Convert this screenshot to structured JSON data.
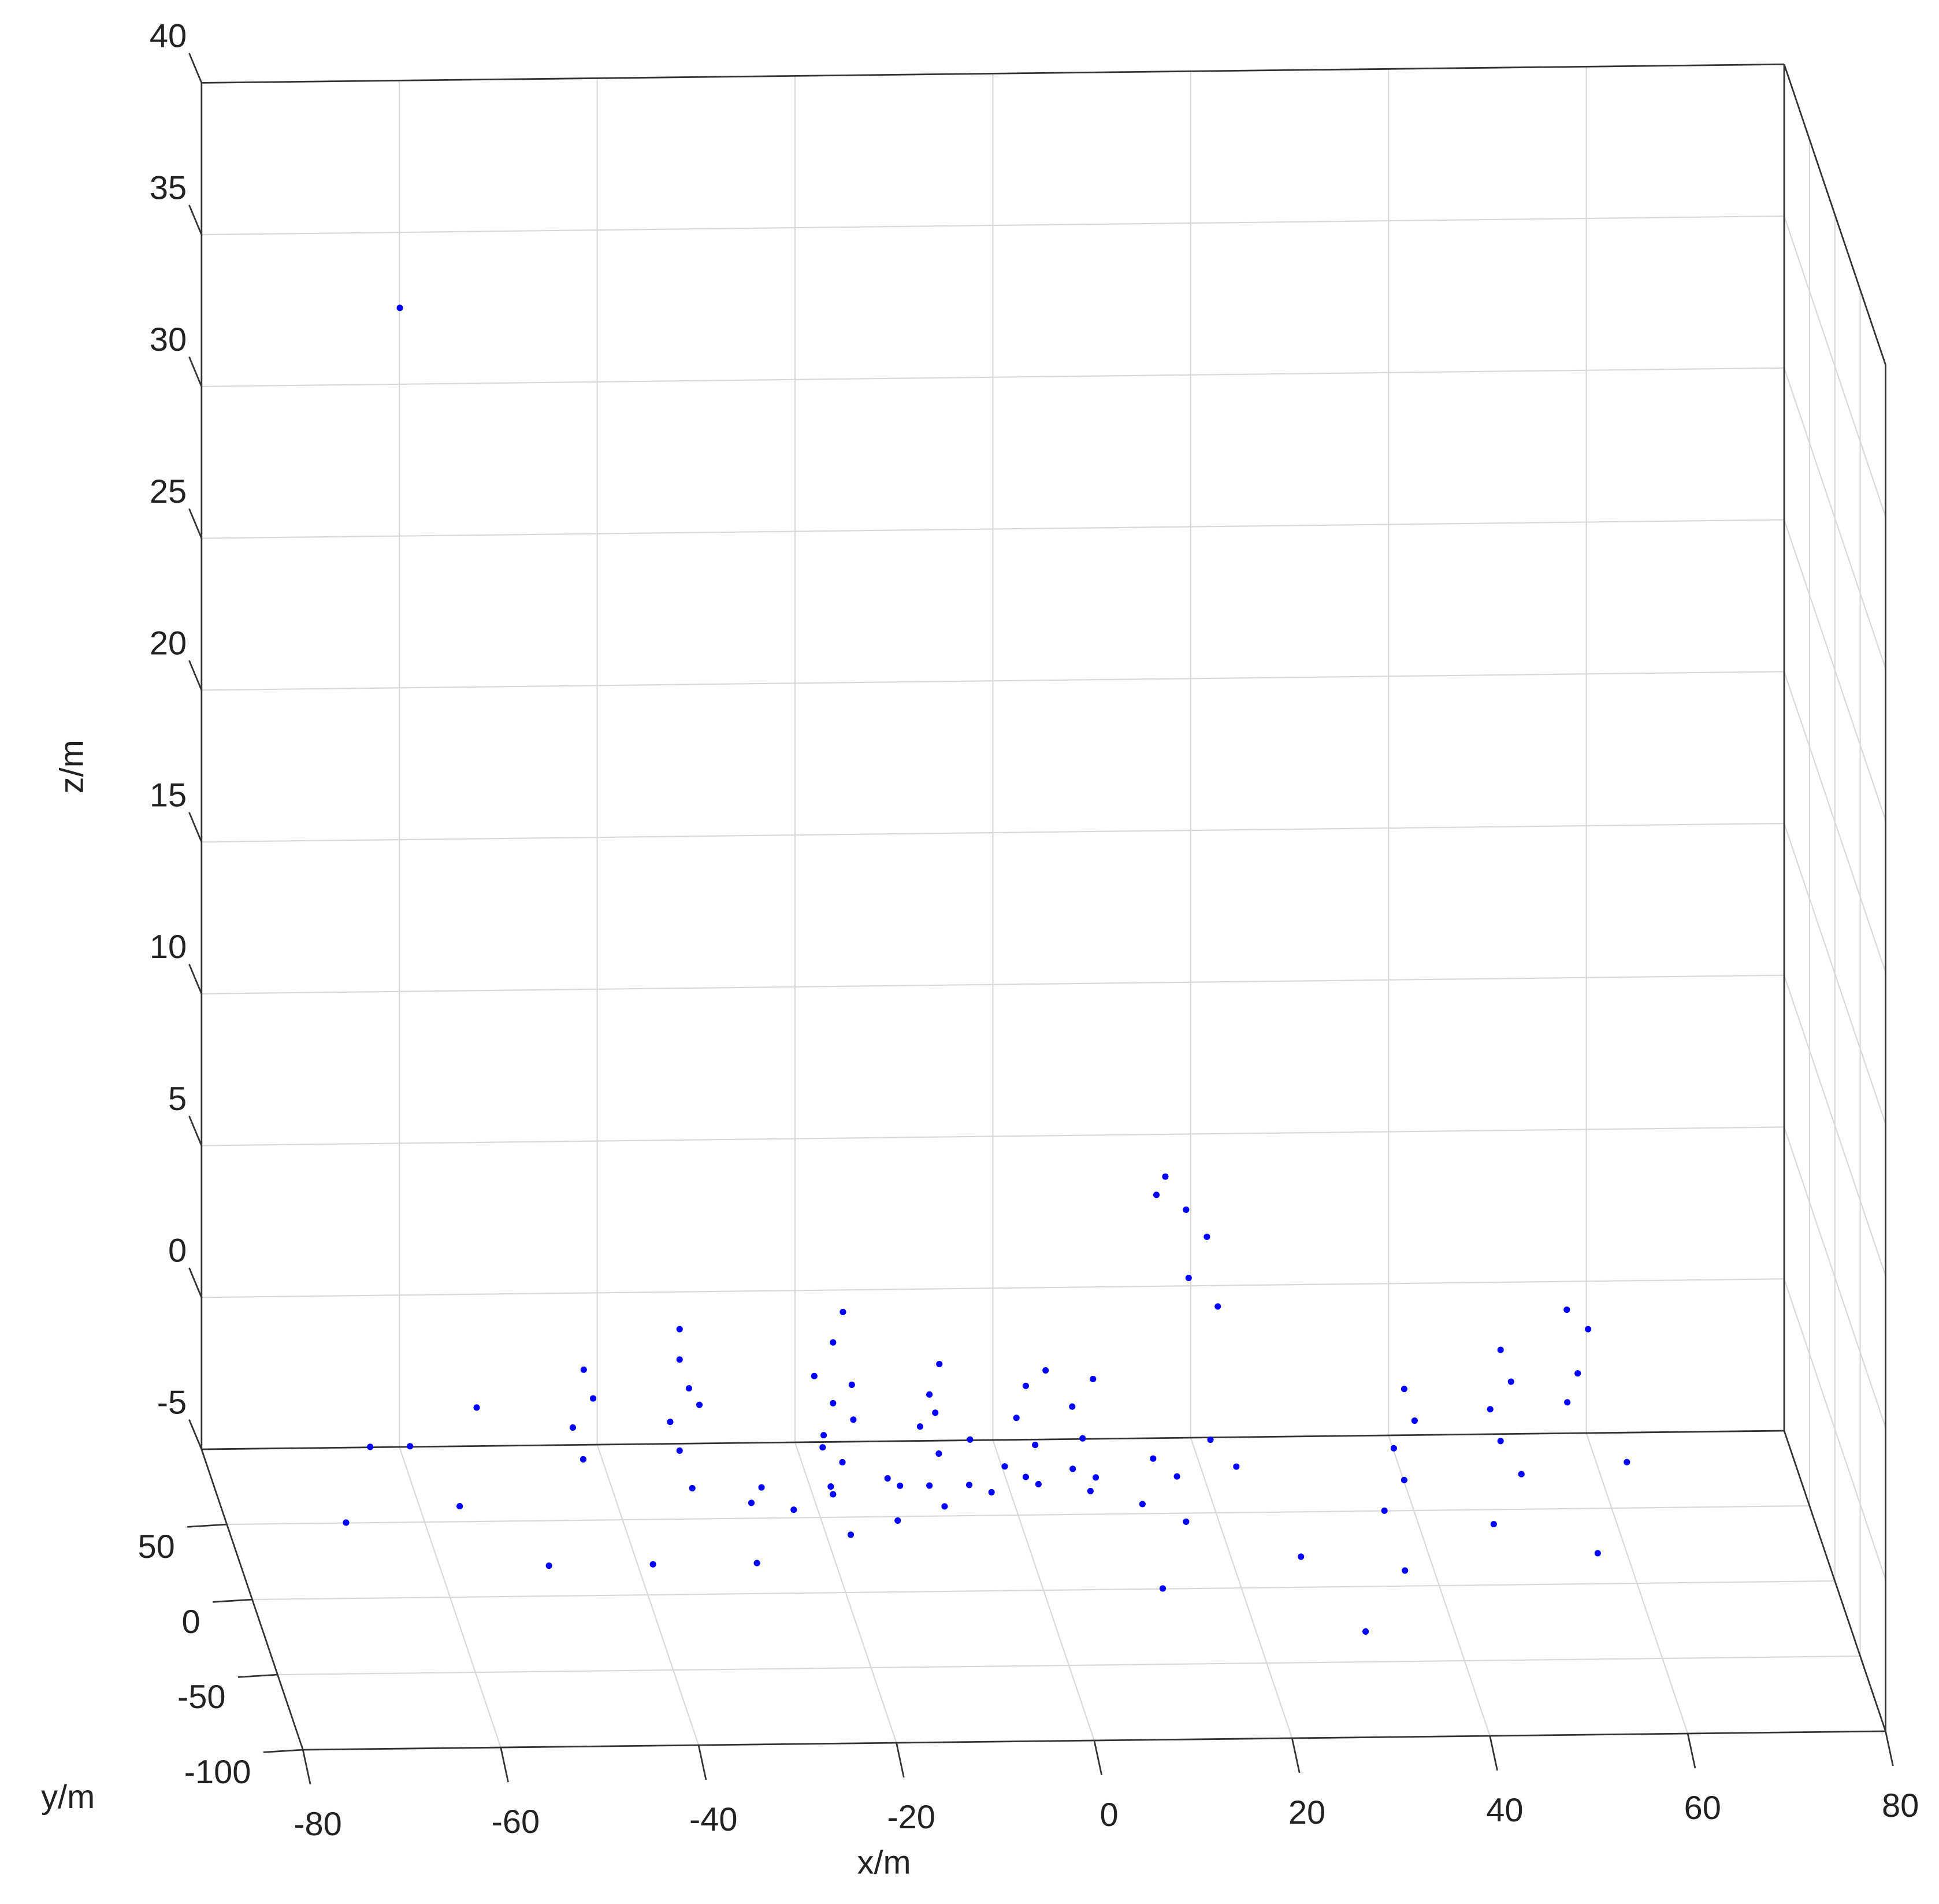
{
  "chart_data": {
    "type": "scatter3d",
    "xlabel": "x/m",
    "ylabel": "y/m",
    "zlabel": "z/m",
    "xlim": [
      -80,
      80
    ],
    "ylim": [
      -100,
      100
    ],
    "zlim": [
      -5,
      40
    ],
    "xticks": [
      -80,
      -60,
      -40,
      -20,
      0,
      20,
      40,
      60,
      80
    ],
    "yticks": [
      -100,
      -50,
      0,
      50
    ],
    "zticks": [
      -5,
      0,
      5,
      10,
      15,
      20,
      25,
      30,
      35,
      40
    ],
    "grid": true,
    "color": "#0000ff",
    "x": [
      -35,
      -28,
      -21,
      -14,
      -7,
      0,
      -5,
      -10,
      -15,
      -20,
      5,
      10,
      14,
      6,
      12,
      18,
      -3,
      -6,
      -9,
      20,
      14,
      -20,
      -19,
      -21,
      -20,
      -18,
      -22,
      -20,
      -19,
      -21,
      -18,
      -10,
      -9,
      -11,
      -10,
      -9,
      -35,
      -36,
      -34,
      -35,
      -35,
      -33,
      -45,
      -46,
      -44,
      -45,
      0,
      1,
      -1,
      0,
      2,
      5,
      6,
      5,
      7,
      38,
      37,
      39,
      38,
      36,
      48,
      47,
      49,
      48,
      50,
      55,
      56,
      57,
      55,
      15,
      18,
      20,
      18,
      21,
      16,
      -62,
      -70,
      -58,
      -50,
      -40,
      -30,
      -55,
      -65,
      25,
      35,
      45,
      10,
      30,
      60,
      55,
      -62,
      -28,
      -25,
      -15
    ],
    "y": [
      10,
      10,
      10,
      10,
      10,
      10,
      5,
      0,
      -5,
      -10,
      5,
      0,
      -8,
      14,
      18,
      22,
      18,
      28,
      38,
      10,
      10,
      25,
      26,
      24,
      25,
      27,
      23,
      25,
      25,
      26,
      24,
      30,
      31,
      29,
      30,
      30,
      35,
      34,
      36,
      35,
      35,
      35,
      30,
      31,
      30,
      29,
      35,
      36,
      34,
      35,
      35,
      40,
      40,
      41,
      39,
      30,
      31,
      29,
      30,
      30,
      35,
      36,
      34,
      35,
      33,
      40,
      39,
      38,
      41,
      70,
      70,
      68,
      65,
      66,
      72,
      40,
      10,
      20,
      0,
      -10,
      -20,
      45,
      60,
      -20,
      -30,
      -10,
      -40,
      -50,
      20,
      -20,
      60,
      30,
      5,
      15
    ],
    "z": [
      -2,
      -2,
      -2,
      -2,
      -2,
      -2,
      -2,
      -2.2,
      -2.4,
      -2.6,
      -2,
      -2.2,
      -2.4,
      -2,
      -1.6,
      -1.2,
      -1.8,
      -1.4,
      -1,
      -1.5,
      -1.8,
      -3,
      -2,
      -1,
      0,
      0.5,
      1,
      2,
      3,
      -1.5,
      -0.5,
      -3,
      -2,
      -1,
      0,
      1,
      -2,
      -1,
      0,
      1,
      2,
      -0.5,
      -2,
      -1,
      0,
      1,
      -3,
      -2,
      -1,
      0,
      0.5,
      -3,
      -2,
      -1,
      0,
      -3,
      -2,
      -1,
      0,
      -4,
      -2,
      -1,
      0,
      1,
      -3,
      -1,
      0,
      1.5,
      2,
      4.5,
      4,
      3.2,
      2,
      1,
      5,
      -2,
      -3,
      -3,
      -4,
      -3.5,
      -3,
      -1,
      -3,
      -3,
      -3,
      -2.5,
      -3,
      -4,
      -2,
      -3,
      34.5,
      -3.5,
      -2.5,
      -2
    ]
  }
}
